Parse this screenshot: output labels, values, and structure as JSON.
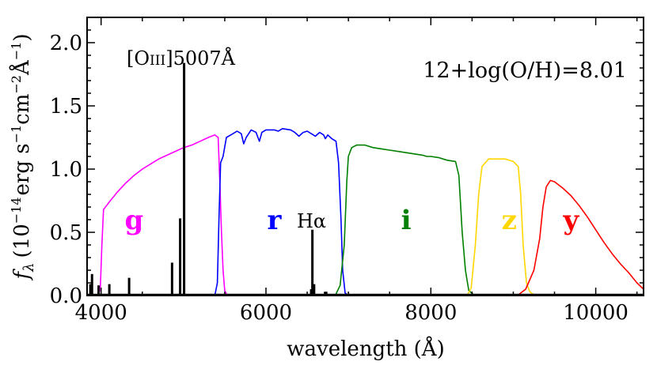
{
  "chart_data": {
    "type": "line",
    "title": "",
    "xlabel": "wavelength (Å)",
    "ylabel": "f_λ (10^-14 erg s^-1 cm^-2 Å^-1)",
    "ylabel_parts": {
      "f": "f",
      "lambda": "λ",
      "open": "(10",
      "exp14": "−14",
      "erg": "erg s",
      "exp1": "−1",
      "cm": "cm",
      "exp2": "−2",
      "ang": "Å",
      "exp1b": "−1",
      "close": ")"
    },
    "xlim": [
      3830,
      10580
    ],
    "ylim": [
      0.0,
      2.2
    ],
    "x_ticks": [
      4000,
      6000,
      8000,
      10000
    ],
    "x_tick_labels": [
      "4000",
      "6000",
      "8000",
      "10000"
    ],
    "y_ticks": [
      0.0,
      0.5,
      1.0,
      1.5,
      2.0
    ],
    "y_tick_labels": [
      "0.0",
      "0.5",
      "1.0",
      "1.5",
      "2.0"
    ],
    "annotations": {
      "metallicity": "12+log(O/H)=8.01",
      "oiii_label": "[O",
      "oiii_roman": "III",
      "oiii_suffix": "]5007Å",
      "halpha": "Hα"
    },
    "bands": [
      {
        "name": "g",
        "color": "#ff00ff",
        "label_position": [
          4400,
          0.6
        ],
        "points": [
          [
            3960,
            0.0
          ],
          [
            3990,
            0.05
          ],
          [
            4010,
            0.4
          ],
          [
            4030,
            0.68
          ],
          [
            4100,
            0.74
          ],
          [
            4200,
            0.82
          ],
          [
            4300,
            0.89
          ],
          [
            4400,
            0.95
          ],
          [
            4500,
            1.0
          ],
          [
            4600,
            1.04
          ],
          [
            4700,
            1.08
          ],
          [
            4800,
            1.11
          ],
          [
            4900,
            1.14
          ],
          [
            5000,
            1.17
          ],
          [
            5100,
            1.19
          ],
          [
            5200,
            1.22
          ],
          [
            5300,
            1.25
          ],
          [
            5380,
            1.27
          ],
          [
            5420,
            1.25
          ],
          [
            5440,
            0.9
          ],
          [
            5460,
            0.5
          ],
          [
            5480,
            0.2
          ],
          [
            5500,
            0.04
          ],
          [
            5530,
            0.0
          ]
        ]
      },
      {
        "name": "r",
        "color": "#0000ff",
        "label_position": [
          6100,
          0.6
        ],
        "points": [
          [
            5380,
            0.0
          ],
          [
            5410,
            0.1
          ],
          [
            5430,
            0.6
          ],
          [
            5450,
            1.05
          ],
          [
            5480,
            1.1
          ],
          [
            5520,
            1.25
          ],
          [
            5600,
            1.28
          ],
          [
            5650,
            1.3
          ],
          [
            5700,
            1.28
          ],
          [
            5730,
            1.2
          ],
          [
            5760,
            1.25
          ],
          [
            5820,
            1.31
          ],
          [
            5880,
            1.29
          ],
          [
            5920,
            1.22
          ],
          [
            5950,
            1.29
          ],
          [
            6000,
            1.31
          ],
          [
            6100,
            1.31
          ],
          [
            6150,
            1.3
          ],
          [
            6200,
            1.32
          ],
          [
            6300,
            1.31
          ],
          [
            6350,
            1.29
          ],
          [
            6400,
            1.26
          ],
          [
            6450,
            1.29
          ],
          [
            6500,
            1.3
          ],
          [
            6550,
            1.28
          ],
          [
            6600,
            1.26
          ],
          [
            6650,
            1.29
          ],
          [
            6700,
            1.27
          ],
          [
            6720,
            1.24
          ],
          [
            6750,
            1.27
          ],
          [
            6800,
            1.24
          ],
          [
            6850,
            1.22
          ],
          [
            6880,
            1.05
          ],
          [
            6910,
            0.6
          ],
          [
            6930,
            0.2
          ],
          [
            6960,
            0.02
          ],
          [
            7000,
            0.0
          ]
        ]
      },
      {
        "name": "i",
        "color": "#008000",
        "label_position": [
          7700,
          0.6
        ],
        "points": [
          [
            6840,
            0.0
          ],
          [
            6900,
            0.08
          ],
          [
            6950,
            0.4
          ],
          [
            6980,
            0.9
          ],
          [
            7000,
            1.1
          ],
          [
            7040,
            1.17
          ],
          [
            7100,
            1.19
          ],
          [
            7200,
            1.19
          ],
          [
            7300,
            1.17
          ],
          [
            7400,
            1.16
          ],
          [
            7500,
            1.15
          ],
          [
            7600,
            1.14
          ],
          [
            7700,
            1.13
          ],
          [
            7800,
            1.12
          ],
          [
            7900,
            1.11
          ],
          [
            7950,
            1.1
          ],
          [
            8000,
            1.1
          ],
          [
            8100,
            1.09
          ],
          [
            8200,
            1.07
          ],
          [
            8300,
            1.06
          ],
          [
            8340,
            0.95
          ],
          [
            8380,
            0.5
          ],
          [
            8420,
            0.2
          ],
          [
            8460,
            0.04
          ],
          [
            8530,
            0.0
          ]
        ]
      },
      {
        "name": "z",
        "color": "#ffd700",
        "label_position": [
          8950,
          0.6
        ],
        "points": [
          [
            8440,
            0.0
          ],
          [
            8490,
            0.06
          ],
          [
            8540,
            0.4
          ],
          [
            8580,
            0.8
          ],
          [
            8620,
            1.02
          ],
          [
            8700,
            1.08
          ],
          [
            8800,
            1.08
          ],
          [
            8900,
            1.08
          ],
          [
            9000,
            1.06
          ],
          [
            9060,
            1.02
          ],
          [
            9090,
            0.8
          ],
          [
            9120,
            0.4
          ],
          [
            9160,
            0.1
          ],
          [
            9200,
            0.03
          ],
          [
            9260,
            0.0
          ]
        ]
      },
      {
        "name": "y",
        "color": "#ff0000",
        "label_position": [
          9700,
          0.6
        ],
        "points": [
          [
            9050,
            0.0
          ],
          [
            9150,
            0.05
          ],
          [
            9250,
            0.2
          ],
          [
            9320,
            0.45
          ],
          [
            9360,
            0.7
          ],
          [
            9400,
            0.86
          ],
          [
            9450,
            0.91
          ],
          [
            9500,
            0.9
          ],
          [
            9600,
            0.85
          ],
          [
            9700,
            0.79
          ],
          [
            9800,
            0.71
          ],
          [
            9900,
            0.62
          ],
          [
            10000,
            0.52
          ],
          [
            10100,
            0.42
          ],
          [
            10200,
            0.33
          ],
          [
            10300,
            0.25
          ],
          [
            10400,
            0.18
          ],
          [
            10500,
            0.1
          ],
          [
            10580,
            0.05
          ]
        ]
      }
    ],
    "spectrum": {
      "name": "spectrum",
      "color": "#000000",
      "baseline": 0.01,
      "lines": [
        {
          "x": 3870,
          "y": 0.09
        },
        {
          "x": 3890,
          "y": 0.17
        },
        {
          "x": 3970,
          "y": 0.08
        },
        {
          "x": 4100,
          "y": 0.09
        },
        {
          "x": 4340,
          "y": 0.14
        },
        {
          "x": 4861,
          "y": 0.26
        },
        {
          "x": 4959,
          "y": 0.61
        },
        {
          "x": 5007,
          "y": 1.84
        },
        {
          "x": 6548,
          "y": 0.05
        },
        {
          "x": 6563,
          "y": 0.52
        },
        {
          "x": 6584,
          "y": 0.09
        },
        {
          "x": 6717,
          "y": 0.03
        },
        {
          "x": 6731,
          "y": 0.03
        }
      ]
    }
  }
}
